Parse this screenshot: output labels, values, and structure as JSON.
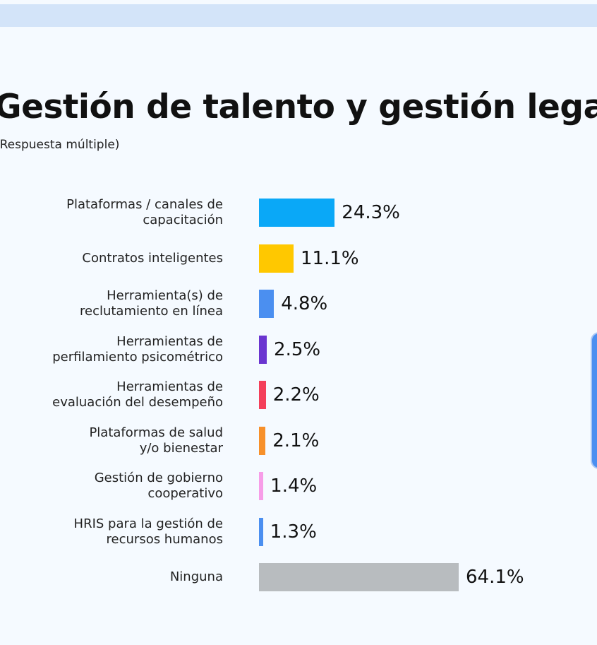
{
  "chart_data": {
    "type": "bar",
    "orientation": "horizontal",
    "title": "Gestión de talento y gestión legal",
    "subtitle": "(Respuesta múltiple)",
    "categories": [
      "Plataformas / canales de\ncapacitación",
      "Contratos inteligentes",
      "Herramienta(s) de\nreclutamiento en línea",
      "Herramientas de\nperfilamiento psicométrico",
      "Herramientas de\nevaluación del desempeño",
      "Plataformas de salud\ny/o bienestar",
      "Gestión de gobierno\ncooperativo",
      "HRIS para la gestión de\nrecursos humanos",
      "Ninguna"
    ],
    "values": [
      24.3,
      11.1,
      4.8,
      2.5,
      2.2,
      2.1,
      1.4,
      1.3,
      64.1
    ],
    "value_labels": [
      "24.3%",
      "11.1%",
      "4.8%",
      "2.5%",
      "2.2%",
      "2.1%",
      "1.4%",
      "1.3%",
      "64.1%"
    ],
    "colors": [
      "#0aa8f7",
      "#ffc800",
      "#4b8ff0",
      "#6a35d0",
      "#f43f5a",
      "#f7902a",
      "#f79de8",
      "#4b8ff0",
      "#b8bcbf"
    ]
  }
}
